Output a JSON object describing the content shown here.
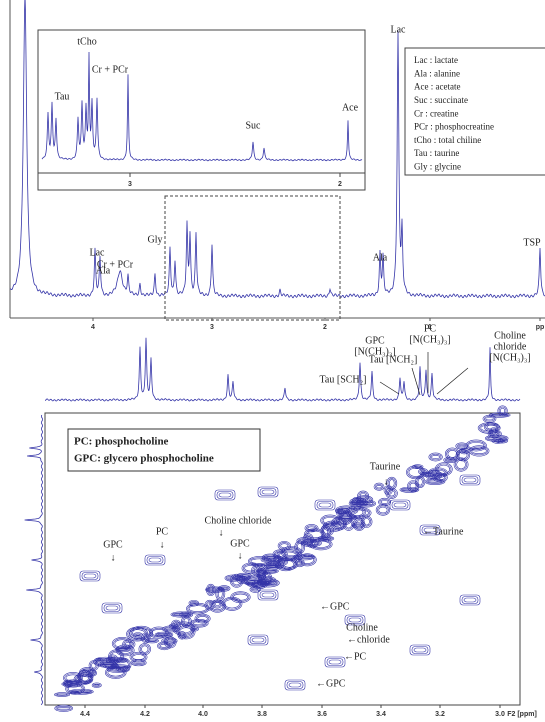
{
  "top_spectrum": {
    "peak_labels": [
      "Lac",
      "Lac",
      "Cr + PCr",
      "Ala",
      "Gly",
      "Ala",
      "TSP"
    ],
    "x_ticks": [
      "4",
      "3",
      "2",
      "1",
      "pp"
    ],
    "inset": {
      "peak_labels": [
        "Tau",
        "tCho",
        "Cr + PCr",
        "Suc",
        "Ace"
      ],
      "x_ticks": [
        "3",
        "2"
      ]
    },
    "legend": [
      "Lac : lactate",
      "Ala : alanine",
      "Ace : acetate",
      "Suc : succinate",
      "Cr : creatine",
      "PCr : phosphocreatine",
      "tCho : total chiline",
      "Tau : taurine",
      "Gly : glycine"
    ]
  },
  "bottom_spectrum": {
    "peak_labels": [
      "Tau [SCH₂]",
      "Tau [NCH₂]",
      "GPC",
      "[N(CH₃)₃]",
      "PC",
      "[N(CH₃)₃]",
      "Choline",
      "chloride",
      "[N(CH₃)₃]"
    ],
    "legend": [
      "PC: phosphocholine",
      "GPC: glycero phosphocholine"
    ],
    "contour_labels": [
      "Taurine",
      "↓",
      "←Taurine",
      "GPC",
      "↓",
      "PC",
      "↓",
      "Choline chloride",
      "↓",
      "GPC",
      "↓",
      "←GPC",
      "Choline",
      "←chloride",
      "←PC",
      "←GPC"
    ],
    "x_ticks": [
      "4.4",
      "4.2",
      "4.0",
      "3.8",
      "3.6",
      "3.4",
      "3.2",
      "3.0"
    ],
    "x_axis_label": "F2 [ppm]"
  }
}
